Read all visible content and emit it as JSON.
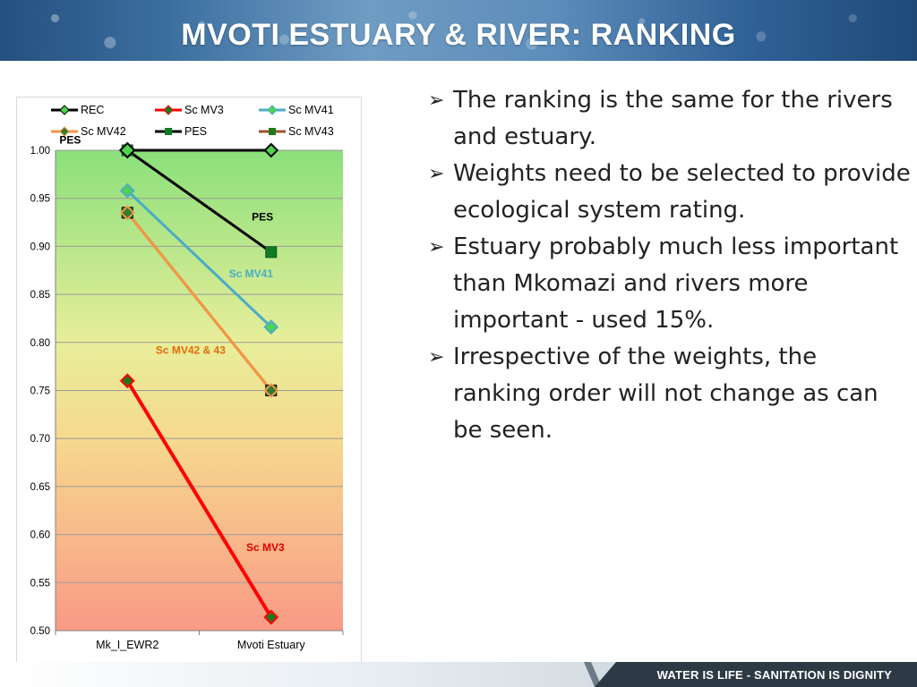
{
  "slide": {
    "title": "MVOTI ESTUARY & RIVER:  RANKING",
    "footer_tagline": "WATER IS LIFE - SANITATION IS DIGNITY"
  },
  "bullets": [
    "The ranking is the same for the rivers and estuary.",
    "Weights need to be selected to provide ecological system rating.",
    "Estuary probably much less important than Mkomazi and rivers more important -  used 15%.",
    "Irrespective of the weights, the ranking order will not change as can be seen."
  ],
  "chart_data": {
    "type": "line",
    "categories": [
      "Mk_I_EWR2",
      "Mvoti Estuary"
    ],
    "ylim": [
      0.5,
      1.0
    ],
    "yticks": [
      "0.50",
      "0.55",
      "0.60",
      "0.65",
      "0.70",
      "0.75",
      "0.80",
      "0.85",
      "0.90",
      "0.95",
      "1.00"
    ],
    "grid": true,
    "background": "gradient green (top) to red (bottom)",
    "legend_position": "top",
    "series": [
      {
        "name": "REC",
        "values": [
          1.0,
          1.0
        ],
        "color": "#000000",
        "marker": "diamond",
        "marker_fill": "#4ed44e"
      },
      {
        "name": "Sc MV3",
        "values": [
          0.76,
          0.514
        ],
        "color": "#ff0000",
        "marker": "diamond",
        "marker_fill": "#1f7a1f"
      },
      {
        "name": "Sc MV41",
        "values": [
          0.958,
          0.816
        ],
        "color": "#4bacc6",
        "marker": "diamond",
        "marker_fill": "#4ed44e"
      },
      {
        "name": "Sc MV42",
        "values": [
          0.935,
          0.75
        ],
        "color": "#f79646",
        "marker": "diamond",
        "marker_fill": "#2e7d32"
      },
      {
        "name": "PES",
        "values": [
          1.0,
          0.894
        ],
        "color": "#000000",
        "marker": "square",
        "marker_fill": "#0e7a24"
      },
      {
        "name": "Sc MV43",
        "values": [
          0.935,
          0.75
        ],
        "color": "#a0522d",
        "marker": "square",
        "marker_fill": "#1f7a1f"
      }
    ],
    "annotations": [
      {
        "text": "PES",
        "color": "#000000"
      },
      {
        "text": "PES",
        "color": "#000000"
      },
      {
        "text": "Sc MV41",
        "color": "#4bacc6"
      },
      {
        "text": "Sc MV42 & 43",
        "color": "#e46c0a"
      },
      {
        "text": "Sc MV3",
        "color": "#e00000"
      }
    ]
  }
}
